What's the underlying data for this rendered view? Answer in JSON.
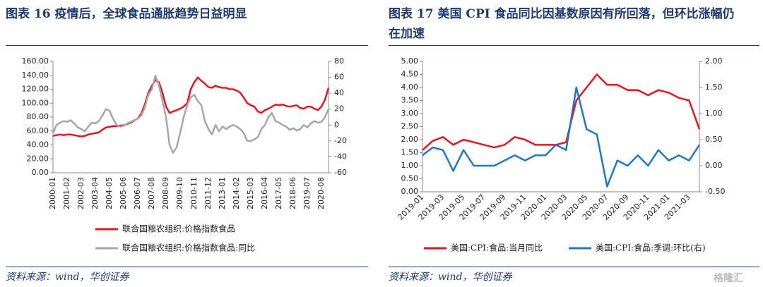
{
  "chart_data": [
    {
      "type": "line",
      "title": "图表 16    疫情后，全球食品通胀趋势日益明显",
      "source": "资料来源：wind，华创证券",
      "categories": [
        "2000-01",
        null,
        null,
        null,
        "2001-02",
        null,
        null,
        null,
        "2002-03",
        null,
        null,
        null,
        "2003-04",
        null,
        null,
        null,
        "2004-05",
        null,
        null,
        null,
        "2005-06",
        null,
        null,
        null,
        "2006-07",
        null,
        null,
        null,
        "2007-08",
        null,
        null,
        null,
        "2008-09",
        null,
        null,
        null,
        "2009-10",
        null,
        null,
        null,
        "2010-11",
        null,
        null,
        null,
        "2011-12",
        null,
        null,
        null,
        "2013-01",
        null,
        null,
        null,
        "2014-02",
        null,
        null,
        null,
        "2015-03",
        null,
        null,
        null,
        "2016-04",
        null,
        null,
        null,
        "2017-05",
        null,
        null,
        null,
        "2018-06",
        null,
        null,
        null,
        "2019-07",
        null,
        null,
        null,
        "2020-08",
        null,
        null
      ],
      "series": [
        {
          "name": "联合国粮农组织:价格指数食品",
          "color": "#e8141e",
          "values": [
            53,
            54,
            55,
            54,
            55,
            55,
            54,
            53,
            52,
            53,
            55,
            56,
            57,
            58,
            62,
            65,
            66,
            67,
            67,
            68,
            68,
            70,
            72,
            75,
            78,
            85,
            98,
            115,
            125,
            133,
            130,
            115,
            95,
            86,
            88,
            90,
            92,
            95,
            100,
            120,
            130,
            137,
            132,
            128,
            123,
            122,
            125,
            123,
            122,
            122,
            120,
            120,
            118,
            115,
            108,
            100,
            97,
            95,
            88,
            86,
            90,
            92,
            95,
            98,
            97,
            98,
            96,
            95,
            96,
            97,
            93,
            92,
            95,
            95,
            92,
            90,
            95,
            105,
            122
          ]
        },
        {
          "name": "联合国粮农组织:价格指数食品:同比",
          "color": "#a6a6a6",
          "axis": "y2",
          "values": [
            -10,
            0,
            3,
            5,
            4,
            6,
            2,
            -3,
            -5,
            -8,
            -2,
            3,
            2,
            5,
            12,
            20,
            18,
            8,
            0,
            -2,
            -1,
            2,
            4,
            6,
            8,
            12,
            22,
            38,
            45,
            62,
            50,
            30,
            10,
            -25,
            -35,
            -28,
            -10,
            10,
            25,
            35,
            38,
            30,
            25,
            5,
            -5,
            -12,
            0,
            -8,
            -2,
            -5,
            -2,
            0,
            -2,
            -5,
            -10,
            -20,
            -20,
            -18,
            -15,
            -5,
            0,
            10,
            15,
            5,
            3,
            0,
            -2,
            -6,
            -4,
            -7,
            -5,
            0,
            -3,
            2,
            5,
            3,
            4,
            10,
            20
          ]
        }
      ],
      "ylim": [
        0,
        160
      ],
      "yticks": [
        {
          "value": 0,
          "label": "0.00"
        },
        {
          "value": 20,
          "label": "20.00"
        },
        {
          "value": 40,
          "label": "40.00"
        },
        {
          "value": 60,
          "label": "60.00"
        },
        {
          "value": 80,
          "label": "80.00"
        },
        {
          "value": 100,
          "label": "100.00"
        },
        {
          "value": 120,
          "label": "120.00"
        },
        {
          "value": 140,
          "label": "140.00"
        },
        {
          "value": 160,
          "label": "160.00"
        }
      ],
      "y2lim": [
        -60,
        80
      ],
      "y2ticks": [
        -60,
        -40,
        -20,
        0,
        20,
        40,
        60,
        80
      ],
      "xlabel_rotation": -90
    },
    {
      "type": "line",
      "title": "图表 17    美国 CPI 食品同比因基数原因有所回落，但环比涨幅仍在加速",
      "source": "资料来源：wind，华创证券",
      "categories": [
        "2019-01",
        null,
        "2019-03",
        null,
        "2019-05",
        null,
        "2019-07",
        null,
        "2019-09",
        null,
        "2019-11",
        null,
        "2020-01",
        null,
        "2020-03",
        null,
        "2020-05",
        null,
        "2020-07",
        null,
        "2020-09",
        null,
        "2020-11",
        null,
        "2021-01",
        null,
        "2021-03",
        null
      ],
      "series": [
        {
          "name": "美国:CPI:食品:当月同比",
          "color": "#e8141e",
          "values": [
            1.6,
            1.95,
            2.1,
            1.8,
            2.0,
            1.9,
            1.8,
            1.7,
            1.8,
            2.1,
            2.0,
            1.8,
            1.8,
            1.8,
            1.9,
            3.5,
            4.0,
            4.5,
            4.1,
            4.1,
            3.9,
            3.9,
            3.7,
            3.9,
            3.8,
            3.6,
            3.5,
            2.4
          ]
        },
        {
          "name": "美国:CPI:食品:季调:环比(右)",
          "color": "#1f77c8",
          "axis": "y2",
          "values": [
            0.2,
            0.35,
            0.3,
            -0.1,
            0.3,
            0.0,
            0.0,
            0.0,
            0.1,
            0.2,
            0.1,
            0.2,
            0.2,
            0.4,
            0.3,
            1.5,
            0.7,
            0.6,
            -0.4,
            0.1,
            0.0,
            0.2,
            0.0,
            0.3,
            0.1,
            0.2,
            0.1,
            0.4
          ]
        }
      ],
      "ylim": [
        0,
        5
      ],
      "yticks": [
        {
          "value": 0,
          "label": "0.00"
        },
        {
          "value": 0.5,
          "label": "0.50"
        },
        {
          "value": 1,
          "label": "1.00"
        },
        {
          "value": 1.5,
          "label": "1.50"
        },
        {
          "value": 2,
          "label": "2.00"
        },
        {
          "value": 2.5,
          "label": "2.50"
        },
        {
          "value": 3,
          "label": "3.00"
        },
        {
          "value": 3.5,
          "label": "3.50"
        },
        {
          "value": 4,
          "label": "4.00"
        },
        {
          "value": 4.5,
          "label": "4.50"
        },
        {
          "value": 5,
          "label": "5.00"
        }
      ],
      "y2lim": [
        -0.5,
        2
      ],
      "y2ticks": [
        {
          "value": -0.5,
          "label": "-0.50"
        },
        {
          "value": 0,
          "label": "0.00"
        },
        {
          "value": 0.5,
          "label": "0.50"
        },
        {
          "value": 1,
          "label": "1.00"
        },
        {
          "value": 1.5,
          "label": "1.50"
        },
        {
          "value": 2,
          "label": "2.00"
        }
      ],
      "xlabel_rotation": -45
    }
  ],
  "watermark": "格隆汇"
}
